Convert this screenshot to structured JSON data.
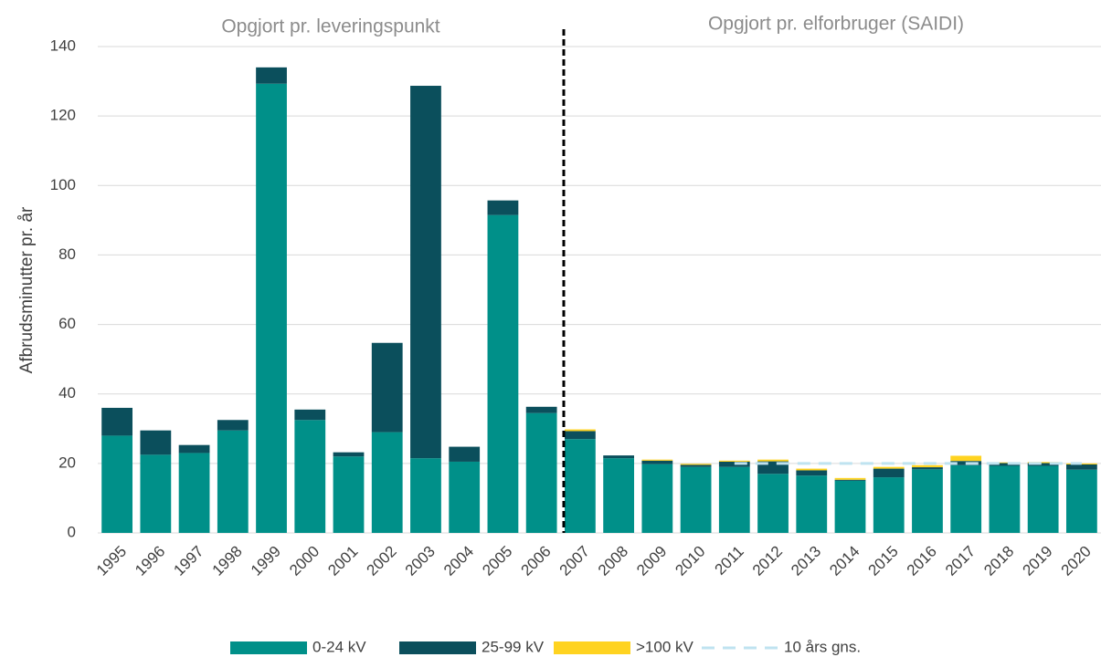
{
  "chart_data": {
    "type": "stacked_bar",
    "y_label": "Afbrudsminutter pr. år",
    "annotations": [
      "Opgjort pr. leveringspunkt",
      "Opgjort pr. elforbruger (SAIDI)"
    ],
    "categories": [
      "1995",
      "1996",
      "1997",
      "1998",
      "1999",
      "2000",
      "2001",
      "2002",
      "2003",
      "2004",
      "2005",
      "2006",
      "2007",
      "2008",
      "2009",
      "2010",
      "2011",
      "2012",
      "2013",
      "2014",
      "2015",
      "2016",
      "2017",
      "2018",
      "2019",
      "2020"
    ],
    "series": [
      {
        "name": "0-24 kV",
        "color": "#009089",
        "values": [
          28,
          22.5,
          23,
          29.5,
          129.3,
          32.5,
          22,
          29,
          21.5,
          20.5,
          91.5,
          34.5,
          27,
          21.5,
          19.8,
          19,
          19,
          17,
          16.5,
          15,
          16,
          18.3,
          19.5,
          19.3,
          19.3,
          18.2
        ]
      },
      {
        "name": "25-99 kV",
        "color": "#0b4f5c",
        "values": [
          8,
          7,
          2.3,
          3,
          4.7,
          3,
          1.2,
          25.7,
          107.2,
          4.3,
          4.2,
          1.8,
          2.3,
          0.8,
          1,
          0.6,
          1.5,
          3.6,
          1.5,
          0.3,
          2.5,
          0.6,
          1.2,
          0.8,
          0.8,
          1.5
        ]
      },
      {
        "name": ">100 kV",
        "color": "#ffd320",
        "values": [
          0,
          0,
          0,
          0,
          0,
          0,
          0,
          0,
          0,
          0,
          0,
          0,
          0.5,
          0,
          0.3,
          0.3,
          0.3,
          0.5,
          0.5,
          0.5,
          0.5,
          0.6,
          1.5,
          0.2,
          0.3,
          0.3
        ]
      },
      {
        "name": "10 års gns.",
        "color": "#bfe3f0",
        "kind": "line",
        "values": [
          null,
          null,
          null,
          null,
          null,
          null,
          null,
          null,
          null,
          null,
          null,
          null,
          null,
          null,
          null,
          null,
          20,
          20,
          20,
          20,
          20,
          20,
          20,
          20,
          20,
          20
        ]
      }
    ],
    "ylim": [
      0,
      140
    ],
    "yticks": [
      0,
      20,
      40,
      60,
      80,
      100,
      120,
      140
    ],
    "grid": true
  }
}
